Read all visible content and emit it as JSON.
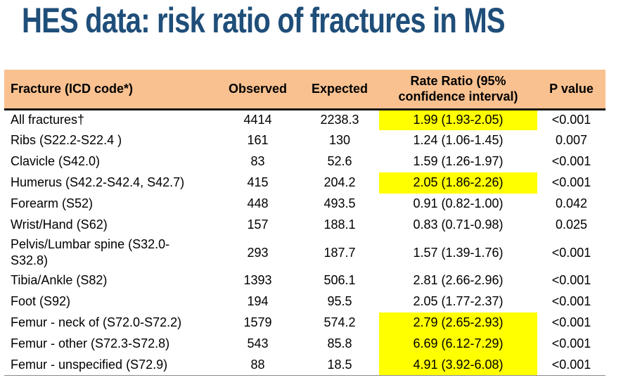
{
  "title": "HES data: risk ratio of fractures in MS",
  "colors": {
    "title_color": "#1F4E79",
    "header_bg": "#F9C190",
    "highlight": "#FFFF00"
  },
  "table": {
    "columns": {
      "fracture": "Fracture (ICD code*)",
      "observed": "Observed",
      "expected": "Expected",
      "rate_ratio": "Rate Ratio (95%\nconfidence interval)",
      "p_value": "P value"
    },
    "rows": [
      {
        "fracture": "All fractures†",
        "observed": "4414",
        "expected": "2238.3",
        "rate_ratio": "1.99 (1.93-2.05)",
        "p_value": "<0.001",
        "highlighted": true
      },
      {
        "fracture": "Ribs (S22.2-S22.4 )",
        "observed": "161",
        "expected": "130",
        "rate_ratio": "1.24 (1.06-1.45)",
        "p_value": "0.007",
        "highlighted": false
      },
      {
        "fracture": "Clavicle (S42.0)",
        "observed": "83",
        "expected": "52.6",
        "rate_ratio": "1.59 (1.26-1.97)",
        "p_value": "<0.001",
        "highlighted": false
      },
      {
        "fracture": "Humerus (S42.2-S42.4, S42.7)",
        "observed": "415",
        "expected": "204.2",
        "rate_ratio": "2.05 (1.86-2.26)",
        "p_value": "<0.001",
        "highlighted": true
      },
      {
        "fracture": "Forearm (S52)",
        "observed": "448",
        "expected": "493.5",
        "rate_ratio": "0.91 (0.82-1.00)",
        "p_value": "0.042",
        "highlighted": false
      },
      {
        "fracture": "Wrist/Hand (S62)",
        "observed": "157",
        "expected": "188.1",
        "rate_ratio": "0.83 (0.71-0.98)",
        "p_value": "0.025",
        "highlighted": false
      },
      {
        "fracture": "Pelvis/Lumbar spine (S32.0-\nS32.8)",
        "observed": "293",
        "expected": "187.7",
        "rate_ratio": "1.57 (1.39-1.76)",
        "p_value": "<0.001",
        "highlighted": false
      },
      {
        "fracture": "Tibia/Ankle (S82)",
        "observed": "1393",
        "expected": "506.1",
        "rate_ratio": "2.81 (2.66-2.96)",
        "p_value": "<0.001",
        "highlighted": false
      },
      {
        "fracture": "Foot (S92)",
        "observed": "194",
        "expected": "95.5",
        "rate_ratio": "2.05 (1.77-2.37)",
        "p_value": "<0.001",
        "highlighted": false
      },
      {
        "fracture": "Femur - neck of (S72.0-S72.2)",
        "observed": "1579",
        "expected": "574.2",
        "rate_ratio": "2.79 (2.65-2.93)",
        "p_value": "<0.001",
        "highlighted": true
      },
      {
        "fracture": "Femur - other (S72.3-S72.8)",
        "observed": "543",
        "expected": "85.8",
        "rate_ratio": "6.69 (6.12-7.29)",
        "p_value": "<0.001",
        "highlighted": true
      },
      {
        "fracture": "Femur - unspecified (S72.9)",
        "observed": "88",
        "expected": "18.5",
        "rate_ratio": "4.91 (3.92-6.08)",
        "p_value": "<0.001",
        "highlighted": true
      }
    ]
  }
}
